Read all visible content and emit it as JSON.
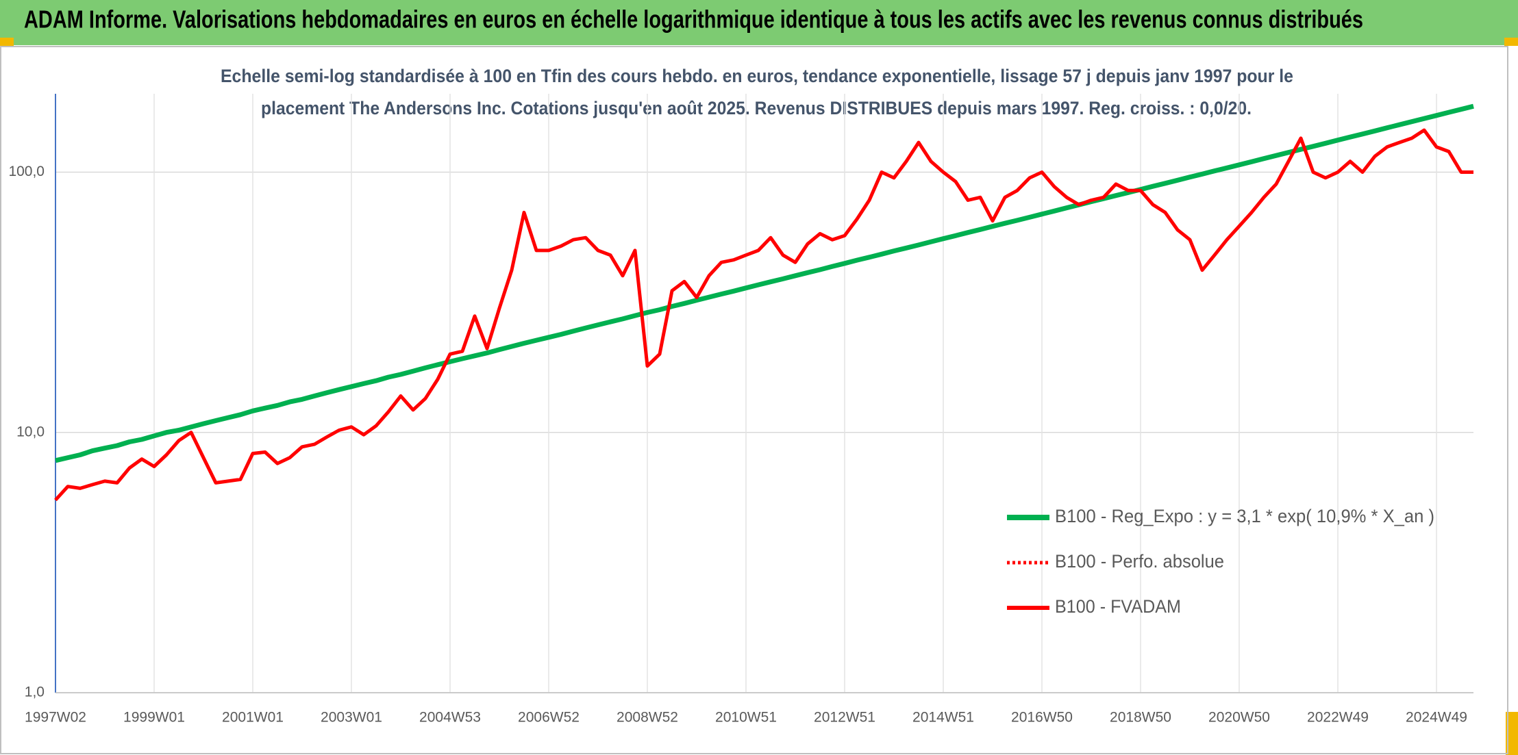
{
  "chart_data": {
    "type": "line",
    "title": "ADAM Informe. Valorisations hebdomadaires en euros en échelle logarithmique identique à tous les actifs avec les revenus connus distribués",
    "subtitle": [
      "Echelle semi-log standardisée à 100 en Tfin des cours hebdo. en euros, tendance exponentielle, lissage 57 j depuis janv 1997 pour le",
      "placement The Andersons Inc. Cotations jusqu'en août 2025. Revenus DISTRIBUES depuis mars 1997. Reg. croiss. : 0,0/20."
    ],
    "yscale": "log",
    "ylim": [
      1,
      200
    ],
    "yticks": [
      {
        "value": 1,
        "label": "1,0"
      },
      {
        "value": 10,
        "label": "10,0"
      },
      {
        "value": 100,
        "label": "100,0"
      }
    ],
    "grid": true,
    "legend": "lower-right",
    "categories": [
      "1997W02",
      null,
      null,
      null,
      null,
      null,
      null,
      null,
      "1999W01",
      null,
      null,
      null,
      null,
      null,
      null,
      null,
      "2001W01",
      null,
      null,
      null,
      null,
      null,
      null,
      null,
      "2003W01",
      null,
      null,
      null,
      null,
      null,
      null,
      null,
      "2004W53",
      null,
      null,
      null,
      null,
      null,
      null,
      null,
      "2006W52",
      null,
      null,
      null,
      null,
      null,
      null,
      null,
      "2008W52",
      null,
      null,
      null,
      null,
      null,
      null,
      null,
      "2010W51",
      null,
      null,
      null,
      null,
      null,
      null,
      null,
      "2012W51",
      null,
      null,
      null,
      null,
      null,
      null,
      null,
      "2014W51",
      null,
      null,
      null,
      null,
      null,
      null,
      null,
      "2016W50",
      null,
      null,
      null,
      null,
      null,
      null,
      null,
      "2018W50",
      null,
      null,
      null,
      null,
      null,
      null,
      null,
      "2020W50",
      null,
      null,
      null,
      null,
      null,
      null,
      null,
      "2022W49",
      null,
      null,
      null,
      null,
      null,
      null,
      null,
      "2024W49",
      null,
      null,
      null
    ],
    "series": [
      {
        "name": "B100 - Reg_Expo : y = 3,1 * exp( 10,9% *  X_an )",
        "color": "#00b050",
        "width": 7,
        "dash": "solid",
        "values": [
          7.8,
          8.0,
          8.2,
          8.5,
          8.7,
          8.9,
          9.2,
          9.4,
          9.7,
          10.0,
          10.2,
          10.5,
          10.8,
          11.1,
          11.4,
          11.7,
          12.1,
          12.4,
          12.7,
          13.1,
          13.4,
          13.8,
          14.2,
          14.6,
          15.0,
          15.4,
          15.8,
          16.3,
          16.7,
          17.2,
          17.7,
          18.2,
          18.7,
          19.2,
          19.7,
          20.2,
          20.8,
          21.4,
          22.0,
          22.6,
          23.2,
          23.8,
          24.5,
          25.2,
          25.9,
          26.6,
          27.3,
          28.1,
          28.9,
          29.6,
          30.5,
          31.3,
          32.2,
          33.1,
          34.0,
          34.9,
          35.9,
          36.9,
          37.9,
          38.9,
          40.0,
          41.1,
          42.2,
          43.4,
          44.6,
          45.9,
          47.1,
          48.4,
          49.8,
          51.1,
          52.5,
          54.0,
          55.5,
          57.0,
          58.6,
          60.2,
          61.9,
          63.6,
          65.3,
          67.1,
          69.0,
          70.9,
          72.9,
          74.9,
          77.0,
          79.1,
          81.3,
          83.5,
          85.8,
          88.2,
          90.6,
          93.1,
          95.7,
          98.3,
          101.1,
          103.8,
          106.7,
          109.6,
          112.7,
          115.8,
          119.0,
          122.3,
          125.6,
          129.1,
          132.7,
          136.4,
          140.1,
          144.0,
          148.0,
          152.1,
          156.3,
          160.6,
          165.1,
          169.7,
          174.3,
          179.1
        ]
      },
      {
        "name": "B100 - Perfo. absolue",
        "color": "#ff0000",
        "width": 4,
        "dash": "dotted",
        "values": [
          5.5,
          6.2,
          6.1,
          6.3,
          6.5,
          6.4,
          7.3,
          7.9,
          7.4,
          8.2,
          9.3,
          10.0,
          8.0,
          6.4,
          6.5,
          6.6,
          8.3,
          8.4,
          7.6,
          8.0,
          8.8,
          9.0,
          9.6,
          10.2,
          10.5,
          9.8,
          10.6,
          12.0,
          13.8,
          12.2,
          13.5,
          16.0,
          20.0,
          20.5,
          28.0,
          21.0,
          30.0,
          42.0,
          70.0,
          50.0,
          50.0,
          52.0,
          55.0,
          56.0,
          50.0,
          48.0,
          40.0,
          50.0,
          18.0,
          20.0,
          35.0,
          38.0,
          33.0,
          40.0,
          45.0,
          46.0,
          48.0,
          50.0,
          56.0,
          48.0,
          45.0,
          53.0,
          58.0,
          55.0,
          57.0,
          66.0,
          78.0,
          100.0,
          95.0,
          110.0,
          130.0,
          110.0,
          100.0,
          92.0,
          78.0,
          80.0,
          65.0,
          80.0,
          85.0,
          95.0,
          100.0,
          88.0,
          80.0,
          75.0,
          78.0,
          80.0,
          90.0,
          85.0,
          85.0,
          75.0,
          70.0,
          60.0,
          55.0,
          42.0,
          48.0,
          55.0,
          62.0,
          70.0,
          80.0,
          90.0,
          110.0,
          135.0,
          100.0,
          95.0,
          100.0,
          110.0,
          100.0,
          115.0,
          125.0,
          130.0,
          135.0,
          145.0,
          125.0,
          120.0,
          100.0,
          100.0
        ]
      },
      {
        "name": "B100 - FVADAM",
        "color": "#ff0000",
        "width": 5,
        "dash": "solid",
        "values": [
          5.5,
          6.2,
          6.1,
          6.3,
          6.5,
          6.4,
          7.3,
          7.9,
          7.4,
          8.2,
          9.3,
          10.0,
          8.0,
          6.4,
          6.5,
          6.6,
          8.3,
          8.4,
          7.6,
          8.0,
          8.8,
          9.0,
          9.6,
          10.2,
          10.5,
          9.8,
          10.6,
          12.0,
          13.8,
          12.2,
          13.5,
          16.0,
          20.0,
          20.5,
          28.0,
          21.0,
          30.0,
          42.0,
          70.0,
          50.0,
          50.0,
          52.0,
          55.0,
          56.0,
          50.0,
          48.0,
          40.0,
          50.0,
          18.0,
          20.0,
          35.0,
          38.0,
          33.0,
          40.0,
          45.0,
          46.0,
          48.0,
          50.0,
          56.0,
          48.0,
          45.0,
          53.0,
          58.0,
          55.0,
          57.0,
          66.0,
          78.0,
          100.0,
          95.0,
          110.0,
          130.0,
          110.0,
          100.0,
          92.0,
          78.0,
          80.0,
          65.0,
          80.0,
          85.0,
          95.0,
          100.0,
          88.0,
          80.0,
          75.0,
          78.0,
          80.0,
          90.0,
          85.0,
          85.0,
          75.0,
          70.0,
          60.0,
          55.0,
          42.0,
          48.0,
          55.0,
          62.0,
          70.0,
          80.0,
          90.0,
          110.0,
          135.0,
          100.0,
          95.0,
          100.0,
          110.0,
          100.0,
          115.0,
          125.0,
          130.0,
          135.0,
          145.0,
          125.0,
          120.0,
          100.0,
          100.0
        ]
      }
    ]
  }
}
